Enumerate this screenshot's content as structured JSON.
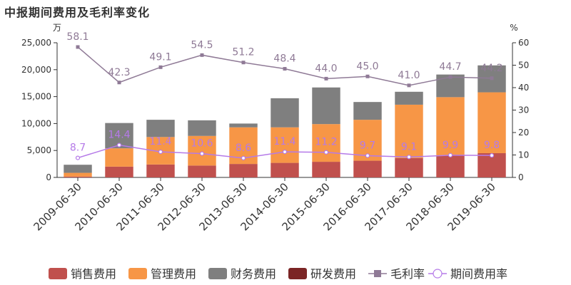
{
  "chart_data": {
    "type": "bar",
    "title": "中报期间费用及毛利率变化",
    "left_unit": "万",
    "right_unit": "%",
    "categories": [
      "2009-06-30",
      "2010-06-30",
      "2011-06-30",
      "2012-06-30",
      "2013-06-30",
      "2014-06-30",
      "2015-06-30",
      "2016-06-30",
      "2017-06-30",
      "2018-06-30",
      "2019-06-30"
    ],
    "left_axis": {
      "ylim": [
        0,
        25000
      ],
      "ticks": [
        "0",
        "5,000",
        "10,000",
        "15,000",
        "20,000",
        "25,000"
      ],
      "tick_values": [
        0,
        5000,
        10000,
        15000,
        20000,
        25000
      ]
    },
    "right_axis": {
      "ylim": [
        0,
        60
      ],
      "ticks": [
        "0",
        "10",
        "20",
        "30",
        "40",
        "50",
        "60"
      ],
      "tick_values": [
        0,
        10,
        20,
        30,
        40,
        50,
        60
      ]
    },
    "stacked_series": [
      {
        "name": "销售费用",
        "color": "#c0504d",
        "values": [
          150,
          2000,
          2400,
          2200,
          2500,
          2700,
          2900,
          3100,
          3600,
          4100,
          4500
        ]
      },
      {
        "name": "管理费用",
        "color": "#f79646",
        "values": [
          700,
          3400,
          5100,
          5500,
          6800,
          6600,
          7000,
          7600,
          9900,
          10800,
          11300
        ]
      },
      {
        "name": "财务费用",
        "color": "#7f7f7f",
        "values": [
          1500,
          4700,
          3200,
          2900,
          700,
          5400,
          6800,
          3300,
          2400,
          4200,
          5000
        ]
      },
      {
        "name": "研发费用",
        "color": "#7b2525",
        "values": [
          0,
          0,
          0,
          0,
          0,
          0,
          0,
          0,
          0,
          0,
          0
        ]
      }
    ],
    "line_series": [
      {
        "name": "毛利率",
        "color": "#8f7a96",
        "marker": "square",
        "values": [
          58.1,
          42.3,
          49.1,
          54.5,
          51.2,
          48.4,
          44.0,
          45.0,
          41.0,
          44.7,
          44.2
        ],
        "labels": [
          "58.1",
          "42.3",
          "49.1",
          "54.5",
          "51.2",
          "48.4",
          "44.0",
          "45.0",
          "41.0",
          "44.7",
          "44.2"
        ]
      },
      {
        "name": "期间费用率",
        "color": "#b57ae8",
        "marker": "circle",
        "values": [
          8.7,
          14.4,
          11.4,
          10.6,
          8.6,
          11.4,
          11.2,
          9.7,
          9.1,
          9.9,
          9.8
        ],
        "labels": [
          "8.7",
          "14.4",
          "11.4",
          "10.6",
          "8.6",
          "11.4",
          "11.2",
          "9.7",
          "9.1",
          "9.9",
          "9.8"
        ]
      }
    ],
    "legend_position": "bottom",
    "grid": false
  }
}
